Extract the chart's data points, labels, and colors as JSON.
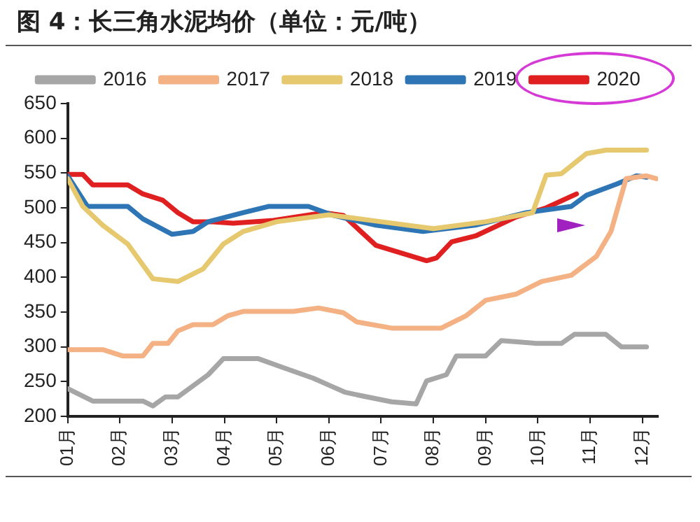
{
  "chart_data": {
    "type": "line",
    "title": "图 4：长三角水泥均价（单位：元/吨）",
    "xlim": [
      1,
      12.3
    ],
    "xticks": [
      {
        "value": 1,
        "label": "01月"
      },
      {
        "value": 2,
        "label": "02月"
      },
      {
        "value": 3,
        "label": "03月"
      },
      {
        "value": 4,
        "label": "04月"
      },
      {
        "value": 5,
        "label": "05月"
      },
      {
        "value": 6,
        "label": "06月"
      },
      {
        "value": 7,
        "label": "07月"
      },
      {
        "value": 8,
        "label": "08月"
      },
      {
        "value": 9,
        "label": "09月"
      },
      {
        "value": 10,
        "label": "10月"
      },
      {
        "value": 11,
        "label": "11月"
      },
      {
        "value": 12,
        "label": "12月"
      }
    ],
    "ylim": [
      200,
      650
    ],
    "yticks": [
      200,
      250,
      300,
      350,
      400,
      450,
      500,
      550,
      600,
      650
    ],
    "grid": false,
    "legend": "top",
    "marker": "none",
    "line_style": "solid",
    "series": [
      {
        "name": "2016",
        "color": "#a6a6a6",
        "x": [
          1,
          1.48,
          2.44,
          2.63,
          2.87,
          3.11,
          3.69,
          3.98,
          4.65,
          5.13,
          5.7,
          6,
          6.3,
          6.6,
          7.2,
          7.67,
          7.87,
          8.25,
          8.44,
          9,
          9.3,
          9.97,
          10.45,
          10.7,
          11.3,
          11.6,
          12.08
        ],
        "values": [
          240,
          222,
          222,
          215,
          228,
          228,
          260,
          283,
          283,
          270,
          255,
          245,
          235,
          230,
          221,
          218,
          251,
          260,
          287,
          287,
          309,
          305,
          305,
          318,
          318,
          300,
          300
        ]
      },
      {
        "name": "2017",
        "color": "#f4b183",
        "x": [
          1,
          1.67,
          2.05,
          2.44,
          2.63,
          2.92,
          3.11,
          3.4,
          3.78,
          4.07,
          4.36,
          5.32,
          5.8,
          6.28,
          6.53,
          7.2,
          8.15,
          8.63,
          9,
          9.59,
          10.07,
          10.64,
          11.12,
          11.4,
          11.69,
          12.08,
          12.27
        ],
        "values": [
          296,
          296,
          287,
          287,
          305,
          305,
          323,
          332,
          332,
          345,
          351,
          351,
          356,
          349,
          336,
          327,
          327,
          345,
          367,
          376,
          394,
          403,
          430,
          466,
          542,
          546,
          542
        ]
      },
      {
        "name": "2018",
        "color": "#e6c86e",
        "x": [
          1,
          1.29,
          1.67,
          2.15,
          2.63,
          3.11,
          3.59,
          3.98,
          4.36,
          5,
          6,
          7,
          8,
          9,
          9.9,
          10.16,
          10.45,
          10.93,
          11.31,
          12.08
        ],
        "values": [
          542,
          502,
          475,
          448,
          398,
          394,
          412,
          448,
          466,
          480,
          490,
          480,
          470,
          480,
          493,
          547,
          549,
          578,
          583,
          583
        ]
      },
      {
        "name": "2019",
        "color": "#2e75b6",
        "x": [
          1,
          1.38,
          2.15,
          2.44,
          3,
          3.4,
          3.69,
          4.36,
          4.84,
          5.61,
          6.09,
          6.9,
          7.8,
          8.8,
          9.78,
          10.64,
          10.93,
          11.5,
          11.89,
          12.08
        ],
        "values": [
          546,
          502,
          502,
          484,
          462,
          466,
          480,
          493,
          502,
          502,
          489,
          475,
          466,
          475,
          493,
          502,
          518,
          534,
          546,
          544
        ]
      },
      {
        "name": "2020",
        "color": "#e02020",
        "x": [
          1,
          1.29,
          1.48,
          2.15,
          2.44,
          2.82,
          3.11,
          3.4,
          3.78,
          4.17,
          4.94,
          5.9,
          6.28,
          6.9,
          7.87,
          8.06,
          8.35,
          8.82,
          9.59,
          10.16,
          10.74
        ],
        "values": [
          548,
          548,
          533,
          533,
          520,
          511,
          493,
          480,
          480,
          478,
          482,
          493,
          489,
          446,
          424,
          428,
          451,
          460,
          487,
          500,
          520
        ]
      }
    ]
  }
}
